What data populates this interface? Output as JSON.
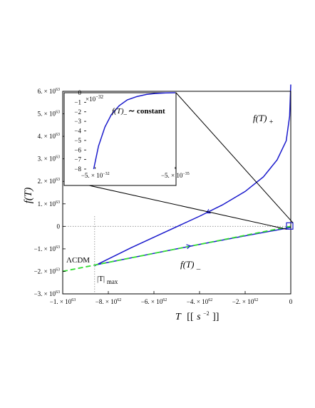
{
  "chart_data": {
    "type": "line",
    "x_range": [
      -1e+63,
      0
    ],
    "y_range": [
      -3e+63,
      6e+63
    ],
    "axis_labels": {
      "y": "f(T)",
      "x_main": "T",
      "x_unit_open": "[[",
      "x_unit_base": "s",
      "x_unit_exp": "−2",
      "x_unit_close": "]]"
    },
    "x_ticks": [
      {
        "value": -1e+63,
        "label": "−1. × 10",
        "exp": "63"
      },
      {
        "value": -8e+62,
        "label": "−8. × 10",
        "exp": "62"
      },
      {
        "value": -6e+62,
        "label": "−6. × 10",
        "exp": "62"
      },
      {
        "value": -4e+62,
        "label": "−4. × 10",
        "exp": "62"
      },
      {
        "value": -2e+62,
        "label": "−2. × 10",
        "exp": "62"
      },
      {
        "value": 0,
        "label": "0",
        "exp": ""
      }
    ],
    "y_ticks": [
      {
        "value": 6e+63,
        "label": "6. × 10",
        "exp": "63"
      },
      {
        "value": 5e+63,
        "label": "5. × 10",
        "exp": "63"
      },
      {
        "value": 4e+63,
        "label": "4. × 10",
        "exp": "63"
      },
      {
        "value": 3e+63,
        "label": "3. × 10",
        "exp": "63"
      },
      {
        "value": 2e+63,
        "label": "2. × 10",
        "exp": "63"
      },
      {
        "value": 1e+63,
        "label": "1. × 10",
        "exp": "63"
      },
      {
        "value": 0,
        "label": "0",
        "exp": ""
      },
      {
        "value": -1e+63,
        "label": "−1. × 10",
        "exp": "63"
      },
      {
        "value": -2e+63,
        "label": "−2. × 10",
        "exp": "63"
      },
      {
        "value": -3e+63,
        "label": "−3. × 10",
        "exp": "63"
      }
    ],
    "series": [
      {
        "name": "f(T)+",
        "color": "#1a1acc",
        "style": "solid",
        "x": [
          -8.6e+62,
          -7e+62,
          -5.5e+62,
          -4e+62,
          -3e+62,
          -2e+62,
          -1.2e+62,
          -6e+61,
          -2e+61,
          -5e+60,
          0
        ],
        "y": [
          -1.75e+63,
          -9.5e+62,
          -2.5e+62,
          4.5e+62,
          9.5e+62,
          1.55e+63,
          2.2e+63,
          2.95e+63,
          3.8e+63,
          4.9e+63,
          6.3e+63
        ]
      },
      {
        "name": "f(T)−",
        "color": "#1a1acc",
        "style": "solid",
        "x": [
          -8.6e+62,
          -6e+62,
          -4e+62,
          -2e+62,
          0
        ],
        "y": [
          -1.72e+63,
          -1.2e+63,
          -8e+62,
          -4.2e+62,
          -5e+61
        ]
      },
      {
        "name": "ΛCDM",
        "color": "#33dd33",
        "style": "dashed",
        "x": [
          -1e+63,
          -8e+62,
          -6e+62,
          -4e+62,
          -2e+62,
          0
        ],
        "y": [
          -2e+63,
          -1.6e+63,
          -1.2e+63,
          -8e+62,
          -4e+62,
          0
        ]
      }
    ],
    "arrows": [
      {
        "series": "f(T)+",
        "x": -3.7e+62,
        "y": 6e+62
      },
      {
        "series": "f(T)−",
        "x": -4.4e+62,
        "y": -8.7e+62
      }
    ],
    "annotations": {
      "fplus": {
        "main": "f(T)",
        "sub": "+"
      },
      "fminus": {
        "main": "f(T)",
        "sub": "_"
      },
      "lcdm": "ΛCDM",
      "tmax": {
        "main": "|T|",
        "sub": "max"
      },
      "tmax_x": -8.6e+62,
      "tmax_y": -1.75e+63
    },
    "inset": {
      "type": "line",
      "x_range": [
        -5.7e-32,
        0
      ],
      "y_range": [
        -8,
        0
      ],
      "x_ticks": [
        {
          "value": -5e-32,
          "label": "−5. × 10",
          "exp": "−32"
        },
        {
          "value": -5e-35,
          "label": "−5. × 10",
          "exp": "−35"
        }
      ],
      "y_ticks": [
        0,
        -1,
        -2,
        -3,
        -4,
        -5,
        -6,
        -7,
        -8
      ],
      "multiplier": {
        "text": "×10",
        "exp": "−32"
      },
      "label": {
        "main": "f(T)",
        "sub": "_",
        "rest": "∼ constant"
      },
      "series": {
        "color": "#1a1acc",
        "x": [
          -5.1e-32,
          -4.8e-32,
          -4.4e-32,
          -4e-32,
          -3.5e-32,
          -3e-32,
          -2.4e-32,
          -1.8e-32,
          -1.2e-32,
          -6e-33,
          0
        ],
        "y": [
          -8,
          -5.6,
          -3.6,
          -2.3,
          -1.35,
          -0.75,
          -0.4,
          -0.18,
          -0.07,
          -0.02,
          0
        ]
      }
    }
  }
}
